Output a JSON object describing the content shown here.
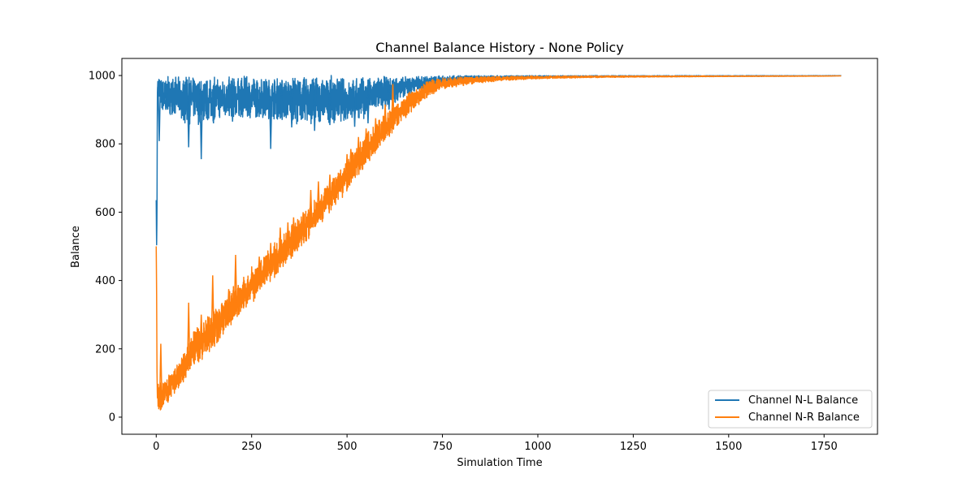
{
  "chart_data": {
    "type": "line",
    "title": "Channel Balance History - None Policy",
    "xlabel": "Simulation Time",
    "ylabel": "Balance",
    "xlim": [
      -90,
      1890
    ],
    "ylim": [
      -50,
      1050
    ],
    "xticks": [
      0,
      250,
      500,
      750,
      1000,
      1250,
      1500,
      1750
    ],
    "yticks": [
      0,
      200,
      400,
      600,
      800,
      1000
    ],
    "legend": "lower-right",
    "grid": false,
    "series": [
      {
        "name": "Channel N-L Balance",
        "color": "#1f77b4",
        "x": [
          0,
          1,
          2,
          3,
          4,
          5,
          10,
          20,
          40,
          60,
          80,
          100,
          120,
          150,
          200,
          250,
          300,
          350,
          400,
          450,
          500,
          550,
          600,
          650,
          700,
          750,
          800,
          900,
          1000,
          1250,
          1500,
          1750,
          1795
        ],
        "y": [
          635,
          500,
          590,
          940,
          990,
          998,
          975,
          950,
          955,
          960,
          955,
          960,
          955,
          960,
          965,
          960,
          955,
          960,
          962,
          958,
          955,
          960,
          968,
          975,
          985,
          992,
          995,
          997,
          998,
          998,
          999,
          999,
          999
        ],
        "low": [
          635,
          500,
          590,
          900,
          930,
          950,
          900,
          880,
          885,
          870,
          850,
          860,
          850,
          865,
          870,
          875,
          870,
          860,
          855,
          860,
          860,
          875,
          905,
          935,
          960,
          975,
          985,
          990,
          994,
          996,
          997,
          998,
          999
        ],
        "high": [
          635,
          500,
          590,
          990,
          1000,
          1000,
          1000,
          1000,
          1000,
          1000,
          1000,
          1000,
          1000,
          1000,
          1000,
          1000,
          1000,
          1000,
          1000,
          1000,
          1000,
          1000,
          1000,
          1000,
          1000,
          1000,
          1000,
          1000,
          1000,
          1000,
          1000,
          1000,
          1000
        ],
        "spikes": [
          {
            "x": 8,
            "y": 808
          },
          {
            "x": 25,
            "y": 900
          },
          {
            "x": 85,
            "y": 790
          },
          {
            "x": 118,
            "y": 755
          },
          {
            "x": 150,
            "y": 860
          },
          {
            "x": 200,
            "y": 865
          },
          {
            "x": 265,
            "y": 880
          },
          {
            "x": 300,
            "y": 785
          },
          {
            "x": 330,
            "y": 870
          },
          {
            "x": 355,
            "y": 848
          },
          {
            "x": 415,
            "y": 838
          },
          {
            "x": 455,
            "y": 855
          },
          {
            "x": 520,
            "y": 850
          },
          {
            "x": 555,
            "y": 860
          },
          {
            "x": 610,
            "y": 900
          }
        ]
      },
      {
        "name": "Channel N-R Balance",
        "color": "#ff7f0e",
        "x": [
          0,
          1,
          2,
          3,
          5,
          10,
          25,
          50,
          75,
          100,
          150,
          200,
          250,
          300,
          350,
          400,
          450,
          500,
          550,
          600,
          625,
          650,
          675,
          700,
          725,
          750,
          800,
          850,
          900,
          1000,
          1100,
          1250,
          1500,
          1750,
          1795
        ],
        "y": [
          500,
          370,
          140,
          60,
          30,
          25,
          50,
          80,
          120,
          170,
          230,
          300,
          360,
          420,
          480,
          550,
          620,
          690,
          760,
          830,
          860,
          890,
          915,
          940,
          955,
          965,
          975,
          983,
          988,
          993,
          995,
          997,
          998,
          999,
          999
        ],
        "low": [
          410,
          370,
          90,
          20,
          10,
          12,
          30,
          60,
          95,
          140,
          200,
          270,
          330,
          395,
          455,
          520,
          590,
          660,
          730,
          805,
          840,
          870,
          900,
          925,
          945,
          958,
          970,
          978,
          984,
          990,
          993,
          995,
          997,
          998,
          999
        ],
        "high": [
          505,
          420,
          240,
          120,
          110,
          105,
          115,
          150,
          200,
          260,
          320,
          380,
          440,
          500,
          560,
          620,
          690,
          760,
          830,
          890,
          920,
          945,
          965,
          980,
          990,
          994,
          996,
          997,
          998,
          999,
          999,
          999,
          999,
          999,
          999
        ],
        "spikes": [
          {
            "x": 12,
            "y": 215
          },
          {
            "x": 85,
            "y": 335
          },
          {
            "x": 118,
            "y": 300
          },
          {
            "x": 148,
            "y": 415
          },
          {
            "x": 190,
            "y": 375
          },
          {
            "x": 208,
            "y": 475
          },
          {
            "x": 270,
            "y": 470
          },
          {
            "x": 300,
            "y": 510
          },
          {
            "x": 325,
            "y": 555
          },
          {
            "x": 345,
            "y": 570
          },
          {
            "x": 360,
            "y": 585
          },
          {
            "x": 385,
            "y": 600
          },
          {
            "x": 405,
            "y": 665
          },
          {
            "x": 425,
            "y": 690
          },
          {
            "x": 455,
            "y": 710
          },
          {
            "x": 480,
            "y": 705
          },
          {
            "x": 500,
            "y": 770
          },
          {
            "x": 510,
            "y": 785
          },
          {
            "x": 530,
            "y": 820
          },
          {
            "x": 550,
            "y": 845
          },
          {
            "x": 575,
            "y": 875
          },
          {
            "x": 600,
            "y": 915
          },
          {
            "x": 620,
            "y": 975
          }
        ]
      }
    ]
  }
}
